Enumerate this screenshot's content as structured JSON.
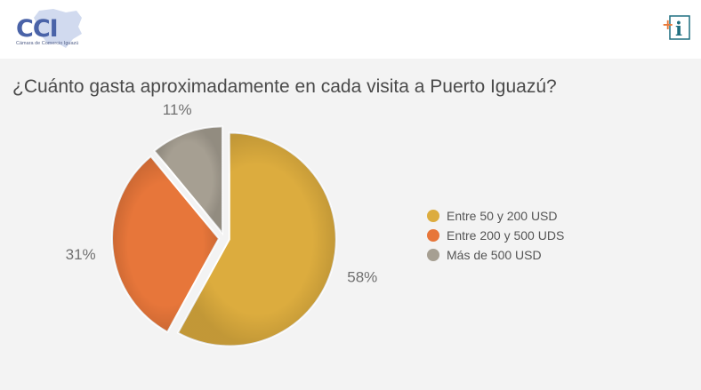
{
  "logo": {
    "letters": "CCI",
    "subtitle": "Cámara de Comercio Iguazú"
  },
  "info_icon": {
    "name": "plus-info-icon",
    "plus": "+",
    "letter": "i",
    "plus_color": "#e87a3a",
    "letter_color": "#1f6f80"
  },
  "chart_data": {
    "type": "pie",
    "title": "¿Cuánto gasta aproximadamente en cada visita a Puerto Iguazú?",
    "slices": [
      {
        "label": "Entre 50 y 200 USD",
        "value": 58,
        "display": "58%",
        "color": "#dcac3e"
      },
      {
        "label": "Entre 200 y 500 UDS",
        "value": 31,
        "display": "31%",
        "color": "#e7763a"
      },
      {
        "label": "Más de 500 USD",
        "value": 11,
        "display": "11%",
        "color": "#a69f92"
      }
    ],
    "start_angle_deg": 0,
    "direction": "clockwise",
    "exploded": true,
    "legend": "right"
  }
}
